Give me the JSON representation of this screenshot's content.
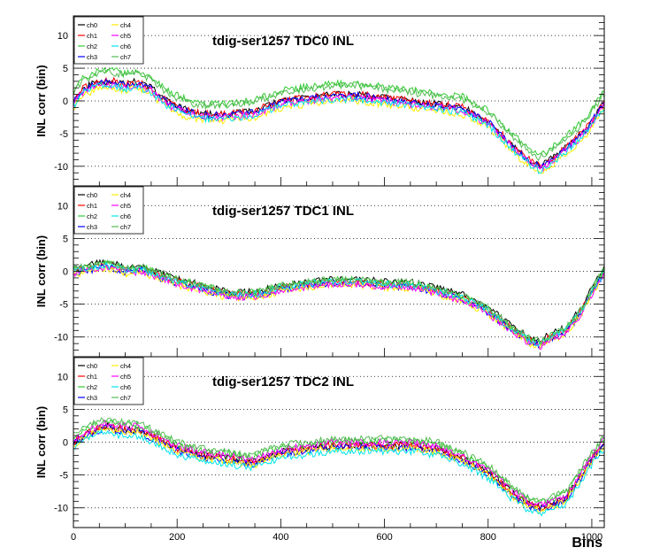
{
  "colors": {
    "ch0": "#000000",
    "ch1": "#ff0000",
    "ch2": "#33cc33",
    "ch3": "#0000ff",
    "ch4": "#ffee00",
    "ch5": "#ff00ff",
    "ch6": "#00e5ee",
    "ch7": "#55bb55"
  },
  "legend_entries": [
    "ch0",
    "ch1",
    "ch2",
    "ch3",
    "ch4",
    "ch5",
    "ch6",
    "ch7"
  ],
  "chart_data": [
    {
      "type": "line",
      "title": "tdig-ser1257 TDC0 INL",
      "ylabel": "INL corr (bin)",
      "xlabel": "",
      "xlim": [
        0,
        1024
      ],
      "ylim": [
        -13,
        13
      ],
      "yticks": [
        -10,
        -5,
        0,
        5,
        10
      ],
      "grid": "horizontal-dotted",
      "legend": "top-left",
      "base_curve": {
        "x": [
          0,
          20,
          50,
          80,
          100,
          120,
          150,
          180,
          220,
          250,
          300,
          350,
          400,
          450,
          500,
          550,
          600,
          650,
          700,
          750,
          800,
          850,
          880,
          900,
          920,
          950,
          980,
          1000,
          1024
        ],
        "y": [
          0,
          2,
          3,
          3,
          2.5,
          3,
          2,
          0,
          -1.5,
          -2,
          -2,
          -1.5,
          0,
          0.5,
          1,
          1,
          0.5,
          0,
          -0.5,
          -1,
          -3,
          -7,
          -9,
          -10,
          -9,
          -7,
          -5,
          -3,
          0
        ]
      },
      "series": [
        {
          "name": "ch0",
          "offset": 0.0
        },
        {
          "name": "ch1",
          "offset": 0.0
        },
        {
          "name": "ch2",
          "offset": 1.6
        },
        {
          "name": "ch3",
          "offset": -0.2
        },
        {
          "name": "ch4",
          "offset": -1.0
        },
        {
          "name": "ch5",
          "offset": -0.5
        },
        {
          "name": "ch6",
          "offset": -0.7
        },
        {
          "name": "ch7",
          "offset": 1.3
        }
      ]
    },
    {
      "type": "line",
      "title": "tdig-ser1257 TDC1 INL",
      "ylabel": "INL corr (bin)",
      "xlabel": "",
      "xlim": [
        0,
        1024
      ],
      "ylim": [
        -13,
        13
      ],
      "yticks": [
        -10,
        -5,
        0,
        5,
        10
      ],
      "grid": "horizontal-dotted",
      "legend": "top-left",
      "base_curve": {
        "x": [
          0,
          30,
          60,
          90,
          110,
          130,
          160,
          200,
          250,
          300,
          350,
          400,
          450,
          500,
          550,
          600,
          650,
          700,
          750,
          800,
          850,
          880,
          900,
          920,
          950,
          980,
          1000,
          1024
        ],
        "y": [
          0,
          0.5,
          1,
          0.5,
          0,
          0.5,
          -0.5,
          -1.5,
          -2.5,
          -3.5,
          -3.5,
          -2.5,
          -2,
          -1.5,
          -1.5,
          -2,
          -2,
          -3,
          -4,
          -6,
          -9,
          -10.5,
          -11,
          -10,
          -9,
          -6,
          -3,
          0
        ]
      },
      "series": [
        {
          "name": "ch0",
          "offset": 0.4
        },
        {
          "name": "ch1",
          "offset": 0.0
        },
        {
          "name": "ch2",
          "offset": 0.2
        },
        {
          "name": "ch3",
          "offset": -0.3
        },
        {
          "name": "ch4",
          "offset": -0.5
        },
        {
          "name": "ch5",
          "offset": -0.4
        },
        {
          "name": "ch6",
          "offset": 0.0
        },
        {
          "name": "ch7",
          "offset": 0.3
        }
      ]
    },
    {
      "type": "line",
      "title": "tdig-ser1257 TDC2 INL",
      "ylabel": "INL corr (bin)",
      "xlabel": "Bins",
      "xlim": [
        0,
        1024
      ],
      "ylim": [
        -13,
        13
      ],
      "yticks": [
        -10,
        -5,
        0,
        5,
        10
      ],
      "xticks": [
        0,
        200,
        400,
        600,
        800,
        1000
      ],
      "grid": "horizontal-dotted",
      "legend": "top-left",
      "base_curve": {
        "x": [
          0,
          30,
          60,
          90,
          120,
          150,
          200,
          250,
          300,
          350,
          380,
          400,
          450,
          500,
          550,
          600,
          650,
          700,
          750,
          800,
          850,
          880,
          900,
          920,
          950,
          980,
          1000,
          1024
        ],
        "y": [
          0,
          1.5,
          2.5,
          2,
          2,
          1,
          -1,
          -2,
          -2.5,
          -3,
          -2,
          -1.5,
          -1,
          -0.5,
          -0.5,
          -0.5,
          -0.5,
          -1,
          -2.5,
          -4.5,
          -8,
          -9.5,
          -10,
          -9.5,
          -8.5,
          -5,
          -2.5,
          0
        ]
      },
      "series": [
        {
          "name": "ch0",
          "offset": 0.0
        },
        {
          "name": "ch1",
          "offset": 0.0
        },
        {
          "name": "ch2",
          "offset": 0.7
        },
        {
          "name": "ch3",
          "offset": -0.3
        },
        {
          "name": "ch4",
          "offset": -0.4
        },
        {
          "name": "ch5",
          "offset": 0.4
        },
        {
          "name": "ch6",
          "offset": -0.9
        },
        {
          "name": "ch7",
          "offset": 1.0
        }
      ]
    }
  ]
}
